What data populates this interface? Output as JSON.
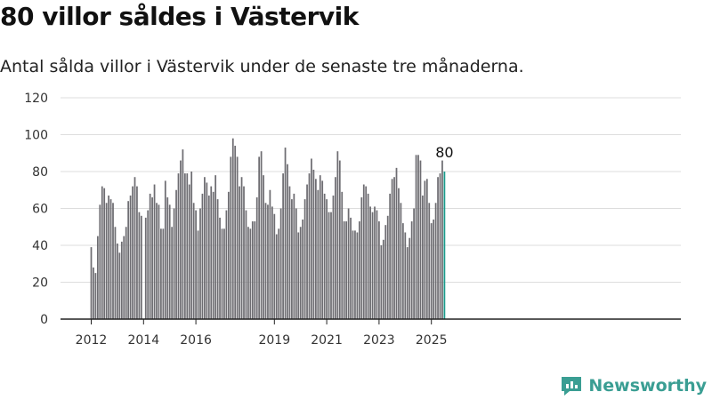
{
  "header": {
    "title": "80 villor såldes i Västervik",
    "subtitle": "Antal sålda villor i Västervik under de senaste tre månaderna."
  },
  "brand": {
    "name": "Newsworthy",
    "color": "#3a9e93",
    "icon": "newsworthy-chart-icon"
  },
  "colors": {
    "bar": "#6e6d72",
    "highlight": "#1a9b8c",
    "axis": "#222222",
    "grid": "#dddddd"
  },
  "chart_data": {
    "type": "bar",
    "title": "80 villor såldes i Västervik",
    "subtitle": "Antal sålda villor i Västervik under de senaste tre månaderna.",
    "xlabel": "",
    "ylabel": "",
    "ylim": [
      0,
      120
    ],
    "yticks": [
      "0",
      "20",
      "40",
      "60",
      "80",
      "100",
      "120"
    ],
    "grid": true,
    "legend": "none",
    "xticks": [
      {
        "label": "2012",
        "month": "2012-01"
      },
      {
        "label": "2014",
        "month": "2014-01"
      },
      {
        "label": "2016",
        "month": "2016-01"
      },
      {
        "label": "2019",
        "month": "2019-01"
      },
      {
        "label": "2021",
        "month": "2021-01"
      },
      {
        "label": "2023",
        "month": "2023-01"
      },
      {
        "label": "2025",
        "month": "2025-01"
      }
    ],
    "start_month": "2012-01",
    "values": [
      39,
      28,
      25,
      45,
      62,
      72,
      71,
      63,
      67,
      65,
      63,
      50,
      41,
      36,
      42,
      45,
      50,
      64,
      67,
      72,
      77,
      72,
      58,
      56,
      null,
      55,
      59,
      68,
      66,
      73,
      63,
      62,
      49,
      49,
      75,
      66,
      62,
      50,
      60,
      70,
      79,
      86,
      92,
      79,
      79,
      73,
      80,
      63,
      59,
      48,
      60,
      68,
      77,
      74,
      67,
      72,
      69,
      78,
      65,
      55,
      49,
      49,
      59,
      69,
      88,
      98,
      94,
      88,
      72,
      77,
      72,
      59,
      50,
      49,
      53,
      53,
      66,
      88,
      91,
      78,
      63,
      62,
      70,
      61,
      57,
      46,
      49,
      60,
      79,
      93,
      84,
      72,
      65,
      68,
      60,
      47,
      50,
      54,
      65,
      73,
      79,
      87,
      81,
      76,
      70,
      78,
      75,
      68,
      65,
      58,
      58,
      67,
      77,
      91,
      86,
      69,
      53,
      53,
      60,
      55,
      48,
      48,
      47,
      53,
      66,
      73,
      72,
      68,
      61,
      58,
      61,
      59,
      53,
      40,
      43,
      51,
      56,
      68,
      76,
      77,
      82,
      71,
      63,
      52,
      47,
      39,
      44,
      53,
      60,
      89,
      89,
      86,
      67,
      75,
      76,
      63,
      52,
      54,
      63,
      77,
      79,
      86,
      80
    ],
    "highlight": {
      "month": "2025-07",
      "value": 80,
      "label": "80"
    }
  }
}
